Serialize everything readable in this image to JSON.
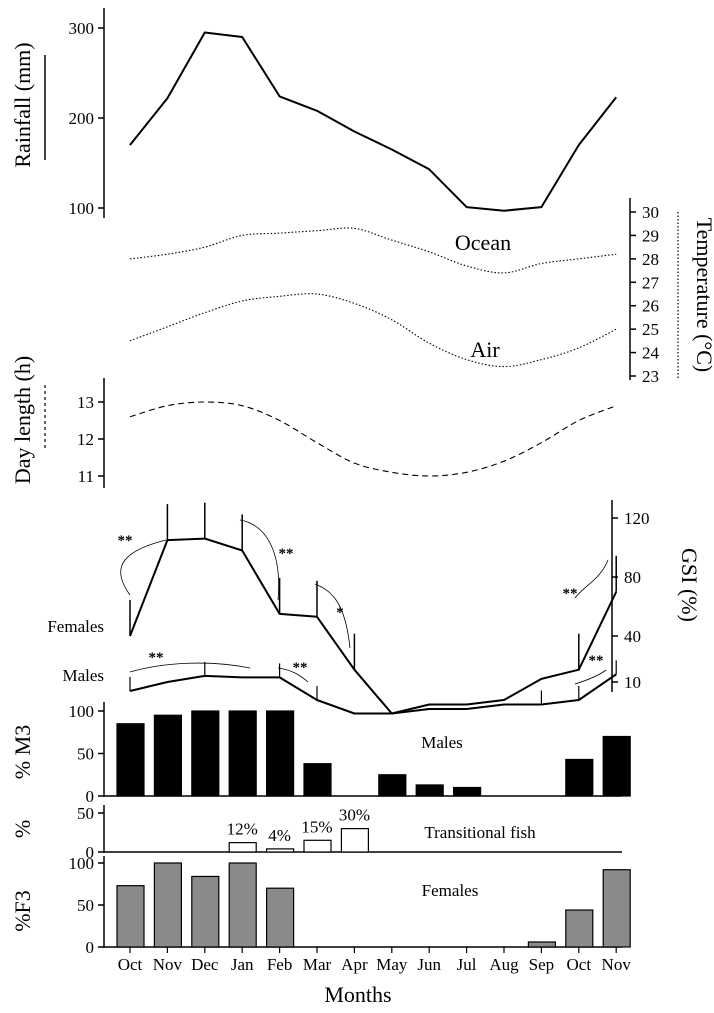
{
  "chart_data": {
    "type": "multi-panel",
    "x": {
      "categories": [
        "Oct",
        "Nov",
        "Dec",
        "Jan",
        "Feb",
        "Mar",
        "Apr",
        "May",
        "Jun",
        "Jul",
        "Aug",
        "Sep",
        "Oct",
        "Nov"
      ],
      "label": "Months"
    },
    "panels": [
      {
        "id": "rainfall",
        "type": "line",
        "ylabel": "Rainfall (mm)",
        "ylim": [
          95,
          300
        ],
        "yticks": [
          "100",
          "200",
          "300"
        ],
        "series": [
          {
            "values": [
              170,
              222,
              295,
              290,
              224,
              208,
              185,
              165,
              143,
              101,
              97,
              101,
              170,
              223
            ]
          }
        ]
      },
      {
        "id": "temperature",
        "type": "line",
        "ylabel": "Temperature (°C)",
        "ylim": [
          23,
          30
        ],
        "yticks": [
          "23",
          "24",
          "25",
          "26",
          "27",
          "28",
          "29",
          "30"
        ],
        "series": [
          {
            "name": "Ocean",
            "style": "dotted",
            "values": [
              28.0,
              28.2,
              28.5,
              29.0,
              29.1,
              29.2,
              29.3,
              28.8,
              28.3,
              27.7,
              27.4,
              27.8,
              28.0,
              28.2
            ]
          },
          {
            "name": "Air",
            "style": "dotted",
            "values": [
              24.5,
              25.1,
              25.7,
              26.2,
              26.4,
              26.5,
              26.1,
              25.4,
              24.4,
              23.7,
              23.4,
              23.7,
              24.2,
              25.0
            ]
          }
        ]
      },
      {
        "id": "daylength",
        "type": "line",
        "ylabel": "Day length (h)",
        "ylim": [
          10.7,
          13.6
        ],
        "yticks": [
          "11",
          "12",
          "13"
        ],
        "series": [
          {
            "style": "dashed",
            "values": [
              12.6,
              12.9,
              13.0,
              12.9,
              12.5,
              11.9,
              11.35,
              11.1,
              11.0,
              11.1,
              11.4,
              11.9,
              12.5,
              12.9
            ]
          }
        ]
      },
      {
        "id": "gsi",
        "type": "line",
        "ylabel": "GSI (%)",
        "yticks": [
          "10",
          "40",
          "80",
          "120"
        ],
        "series": [
          {
            "name": "Females",
            "values": [
              40,
              105,
              106,
              98,
              55,
              53,
              18,
              3,
              5,
              5,
              6,
              12,
              18,
              70
            ]
          },
          {
            "name": "Males",
            "values": [
              8,
              10,
              14,
              13,
              13,
              6,
              3,
              3,
              4,
              4,
              5,
              5,
              6,
              15
            ]
          }
        ],
        "annotations": [
          "**",
          "**",
          "*",
          "**",
          "**",
          "**",
          "**"
        ]
      },
      {
        "id": "males_m3",
        "type": "bar",
        "title": "Males",
        "ylabel": "% M3",
        "ylim": [
          0,
          100
        ],
        "yticks": [
          "0",
          "50",
          "100"
        ],
        "values": [
          85,
          95,
          100,
          100,
          100,
          38,
          null,
          25,
          13,
          10,
          null,
          null,
          43,
          70
        ]
      },
      {
        "id": "transitional",
        "type": "bar",
        "title": "Transitional fish",
        "ylabel": "%",
        "ylim": [
          0,
          50
        ],
        "yticks": [
          "0",
          "50"
        ],
        "values": [
          null,
          null,
          null,
          12,
          4,
          15,
          30,
          null,
          null,
          null,
          null,
          null,
          null,
          null
        ],
        "data_labels": [
          "",
          "",
          "",
          "12%",
          "4%",
          "15%",
          "30%",
          "",
          "",
          "",
          "",
          "",
          "",
          ""
        ]
      },
      {
        "id": "females_f3",
        "type": "bar",
        "title": "Females",
        "ylabel": "%F3",
        "ylim": [
          0,
          100
        ],
        "yticks": [
          "0",
          "50",
          "100"
        ],
        "values": [
          73,
          100,
          84,
          100,
          70,
          null,
          null,
          null,
          null,
          null,
          null,
          6,
          44,
          92
        ]
      }
    ]
  }
}
